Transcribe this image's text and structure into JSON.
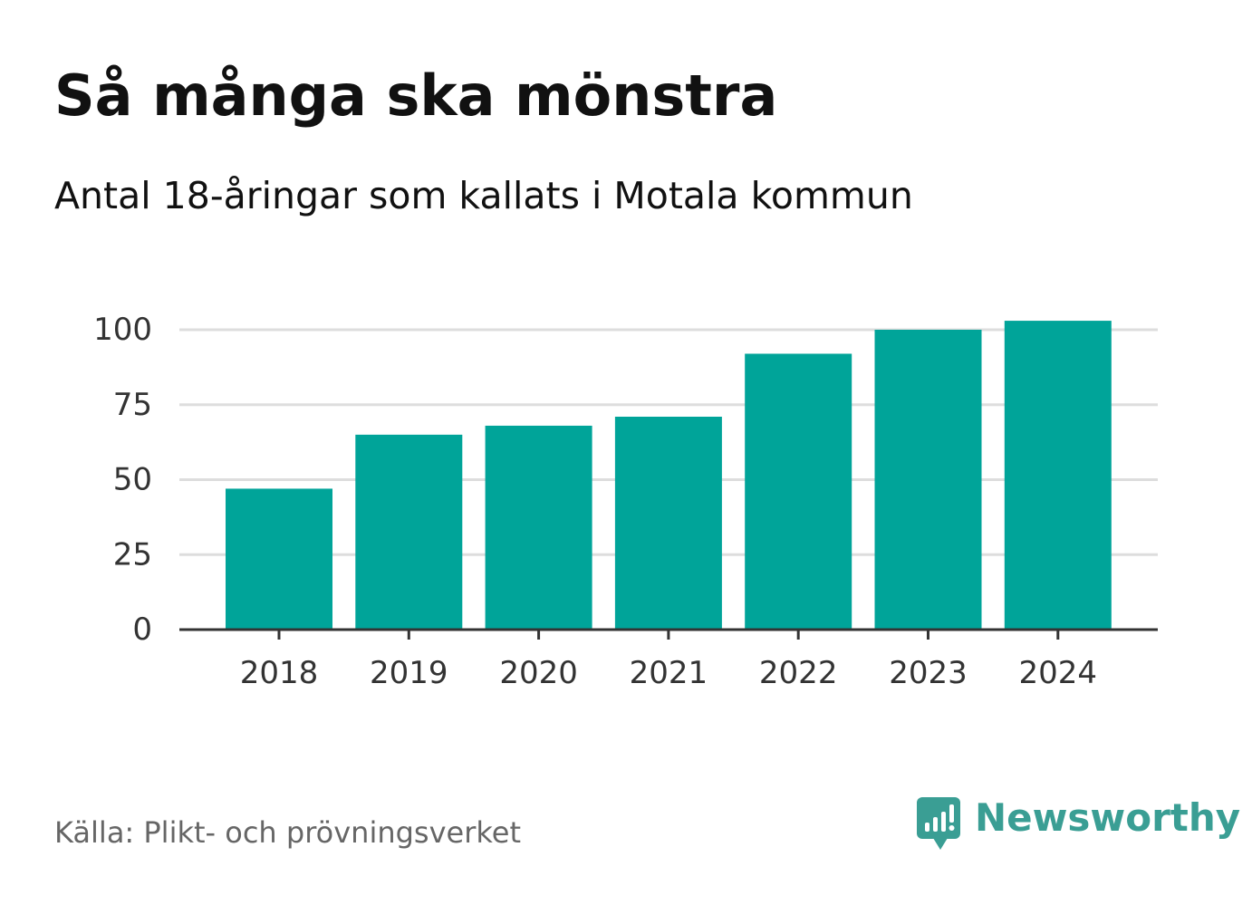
{
  "header": {
    "title": "Så många ska mönstra",
    "subtitle": "Antal 18-åringar som kallats i Motala kommun"
  },
  "footer": {
    "source": "Källa: Plikt- och prövningsverket",
    "brand": "Newsworthy"
  },
  "colors": {
    "bar": "#00a499",
    "brand": "#3a9e94",
    "grid": "#dddddd",
    "axis": "#333333"
  },
  "chart_data": {
    "type": "bar",
    "title": "Så många ska mönstra",
    "subtitle": "Antal 18-åringar som kallats i Motala kommun",
    "xlabel": "",
    "ylabel": "",
    "categories": [
      "2018",
      "2019",
      "2020",
      "2021",
      "2022",
      "2023",
      "2024"
    ],
    "values": [
      47,
      65,
      68,
      71,
      92,
      100,
      103
    ],
    "ylim": [
      0,
      100
    ],
    "yticks": [
      0,
      25,
      50,
      75,
      100
    ],
    "grid": true,
    "legend": "none"
  }
}
